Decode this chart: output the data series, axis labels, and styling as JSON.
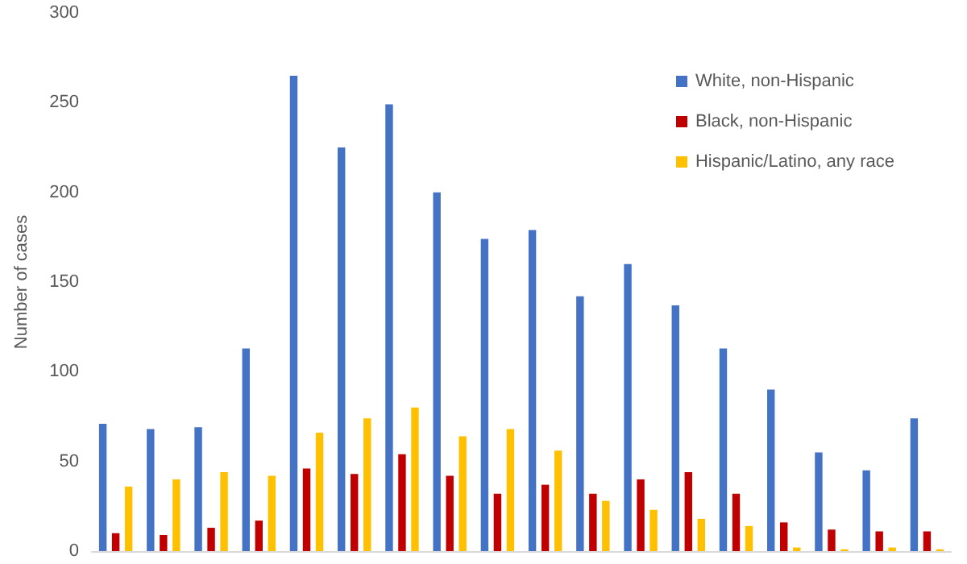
{
  "chart_data": {
    "type": "bar",
    "ylabel": "Number of cases",
    "categories": [
      null,
      null,
      null,
      null,
      null,
      null,
      null,
      null,
      null,
      null,
      null,
      null,
      null,
      null,
      null,
      null,
      null,
      null
    ],
    "series": [
      {
        "name": "White, non-Hispanic",
        "color": "#4472c4",
        "values": [
          71,
          68,
          69,
          113,
          265,
          225,
          249,
          200,
          174,
          179,
          142,
          160,
          137,
          113,
          90,
          55,
          45,
          74
        ]
      },
      {
        "name": "Black, non-Hispanic",
        "color": "#c00000",
        "values": [
          10,
          9,
          13,
          17,
          46,
          43,
          54,
          42,
          32,
          37,
          32,
          40,
          44,
          32,
          16,
          12,
          11,
          11
        ]
      },
      {
        "name": "Hispanic/Latino, any race",
        "color": "#ffc000",
        "values": [
          36,
          40,
          44,
          42,
          66,
          74,
          80,
          64,
          68,
          56,
          28,
          23,
          18,
          14,
          2,
          1,
          2,
          1
        ]
      }
    ],
    "ylim": [
      0,
      300
    ],
    "yticks": [
      0,
      50,
      100,
      150,
      200,
      250,
      300
    ],
    "grid": false,
    "legend": "top right"
  }
}
